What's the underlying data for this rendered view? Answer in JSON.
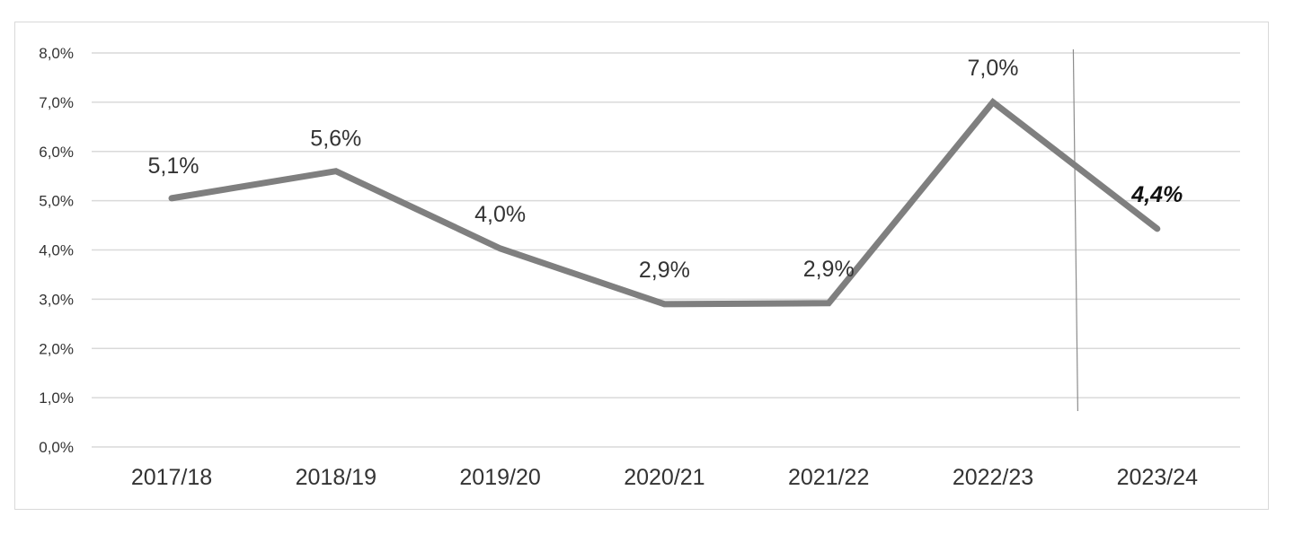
{
  "chart_data": {
    "type": "line",
    "categories": [
      "2017/18",
      "2018/19",
      "2019/20",
      "2020/21",
      "2021/22",
      "2022/23",
      "2023/24"
    ],
    "series": [
      {
        "values": [
          5.05,
          5.6,
          4.03,
          2.9,
          2.92,
          7.0,
          4.43
        ],
        "data_labels": [
          "5,1%",
          "5,6%",
          "4,0%",
          "2,9%",
          "2,9%",
          "7,0%",
          "4,4%"
        ],
        "highlighted_label_index": 6,
        "color": "#7f7f7f"
      }
    ],
    "ylim": [
      0,
      8
    ],
    "yticks": [
      0,
      1,
      2,
      3,
      4,
      5,
      6,
      7,
      8
    ],
    "ytick_labels": [
      "0,0%",
      "1,0%",
      "2,0%",
      "3,0%",
      "4,0%",
      "5,0%",
      "6,0%",
      "7,0%",
      "8,0%"
    ],
    "title": "",
    "xlabel": "",
    "ylabel": "",
    "grid": true,
    "legend": "none",
    "separator_between_categories": [
      5,
      6
    ],
    "colors": {
      "grid": "#d9d9d9",
      "line": "#7f7f7f",
      "separator": "#8c8c8c",
      "text": "#333333"
    }
  }
}
